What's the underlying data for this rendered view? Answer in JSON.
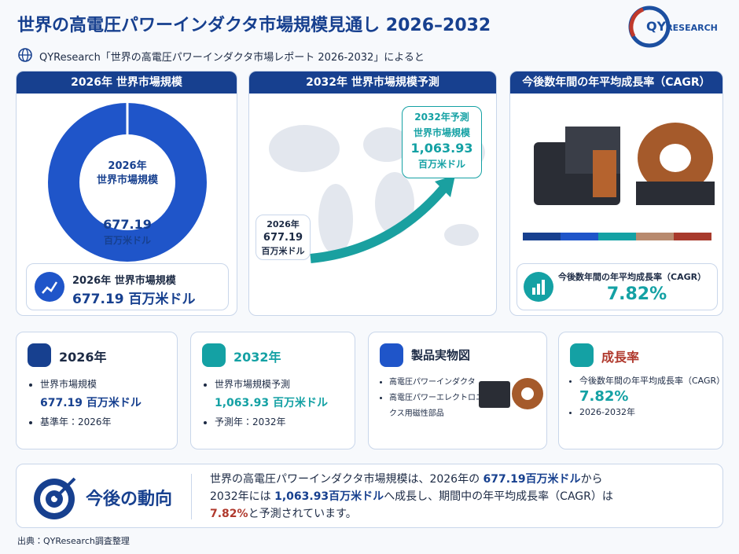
{
  "header": {
    "title": "世界の高電圧パワーインダクタ市場規模見通し 2026–2032",
    "subtitle": "QYResearch「世界の高電圧パワーインダクタ市場レポート 2026-2032」によると",
    "logo_main": "QY",
    "logo_sub": "RESEARCH"
  },
  "panels": [
    {
      "title": "2026年 世界市場規模",
      "center_lines": [
        "2026年",
        "世界市場規模"
      ],
      "value": "677.19",
      "unit": "百万米ドル",
      "summary_label": "2026年 世界市場規模",
      "summary_value": "677.19 百万米ドル"
    },
    {
      "title": "2032年 世界市場規模予測",
      "start_lines": [
        "2026年",
        "677.19",
        "百万米ドル"
      ],
      "end_lines": [
        "2032年予測",
        "世界市場規模",
        "1,063.93",
        "百万米ドル"
      ]
    },
    {
      "title": "今後数年間の年平均成長率（CAGR）",
      "label": "今後数年間の年平均成長率（CAGR）",
      "value": "7.82%"
    }
  ],
  "cards": [
    {
      "title": "2026年",
      "items": [
        "世界市場規模",
        "677.19 百万米ドル",
        "基準年：2026年"
      ]
    },
    {
      "title": "2032年",
      "items": [
        "世界市場規模予測",
        "1,063.93 百万米ドル",
        "予測年：2032年"
      ]
    },
    {
      "title": "製品実物図",
      "items": [
        "高電圧パワーインダクタ",
        "高電圧パワーエレクトロニクス用磁性部品"
      ]
    },
    {
      "title": "成長率",
      "items": [
        "今後数年間の年平均成長率（CAGR）",
        "7.82%",
        "2026-2032年"
      ]
    }
  ],
  "outlook": {
    "title": "今後の動向",
    "text": [
      "世界の高電圧パワーインダクタ市場規模は、2026年の ",
      "677.19百万米ドル",
      "から",
      "2032年には ",
      "1,063.93百万米ドル",
      "へ成長し、期間中の年平均成長率（CAGR）は",
      "7.82%",
      "と予測されています。"
    ]
  },
  "source": "出典：QYResearch調査整理"
}
